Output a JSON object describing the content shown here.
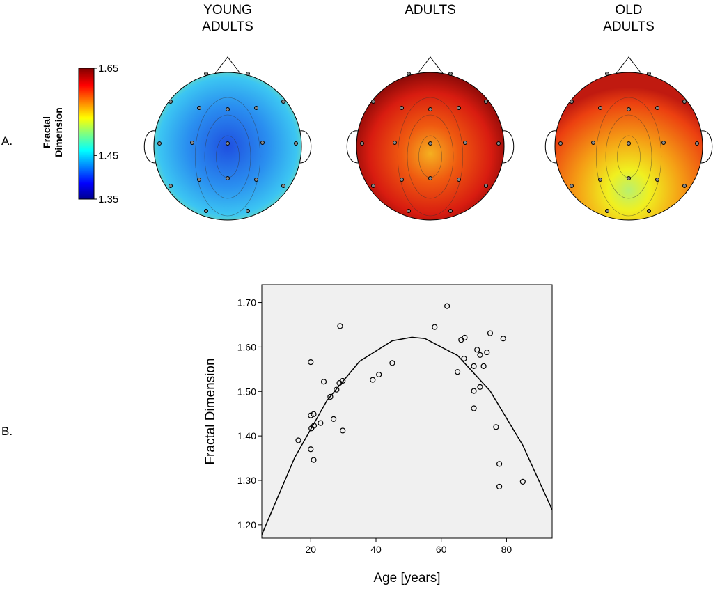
{
  "panel_a": {
    "label": "A.",
    "colorbar": {
      "title": [
        "Fractal",
        "Dimension"
      ],
      "lim": [
        1.35,
        1.65
      ],
      "ticks": [
        1.65,
        1.45,
        1.35
      ]
    },
    "maps": [
      {
        "title": [
          "YOUNG",
          "ADULTS"
        ]
      },
      {
        "title": [
          "ADULTS"
        ]
      },
      {
        "title": [
          "OLD",
          "ADULTS"
        ]
      }
    ]
  },
  "panel_b": {
    "label": "B.",
    "chart_data": {
      "type": "scatter",
      "xlabel": "Age [years]",
      "ylabel": "Fractal Dimension",
      "xlim": [
        5,
        94
      ],
      "ylim": [
        1.17,
        1.74
      ],
      "xticks": [
        20,
        40,
        60,
        80
      ],
      "yticks": [
        {
          "value": 1.2,
          "label": "1.20"
        },
        {
          "value": 1.3,
          "label": "1.30"
        },
        {
          "value": 1.4,
          "label": "1.40"
        },
        {
          "value": 1.5,
          "label": "1.50"
        },
        {
          "value": 1.6,
          "label": "1.60"
        },
        {
          "value": 1.7,
          "label": "1.70"
        }
      ],
      "series": [
        {
          "type": "scatter",
          "color": "#000000",
          "x": [
            16.2,
            20,
            20,
            20.9,
            20.2,
            21,
            23,
            20,
            20.9,
            24,
            26,
            27,
            27.9,
            28.8,
            29.8,
            29,
            29.8,
            39,
            40.9,
            45,
            58,
            61.8,
            65,
            66.1,
            67.2,
            67,
            71,
            71.9,
            74,
            75,
            79,
            70,
            73,
            70,
            71.9,
            70,
            76.8,
            77.8,
            77.8,
            85
          ],
          "values": [
            1.39,
            1.566,
            1.446,
            1.449,
            1.417,
            1.423,
            1.429,
            1.37,
            1.346,
            1.522,
            1.488,
            1.438,
            1.504,
            1.519,
            1.524,
            1.647,
            1.412,
            1.526,
            1.538,
            1.564,
            1.645,
            1.692,
            1.544,
            1.616,
            1.621,
            1.574,
            1.594,
            1.582,
            1.588,
            1.631,
            1.619,
            1.557,
            1.557,
            1.501,
            1.51,
            1.462,
            1.42,
            1.337,
            1.286,
            1.297
          ]
        },
        {
          "type": "line",
          "color": "#000000",
          "x": [
            5,
            15,
            25,
            35,
            45,
            51,
            55,
            65,
            75,
            85,
            94
          ],
          "values": [
            1.178,
            1.35,
            1.48,
            1.568,
            1.614,
            1.622,
            1.619,
            1.581,
            1.501,
            1.379,
            1.234
          ]
        }
      ]
    }
  }
}
